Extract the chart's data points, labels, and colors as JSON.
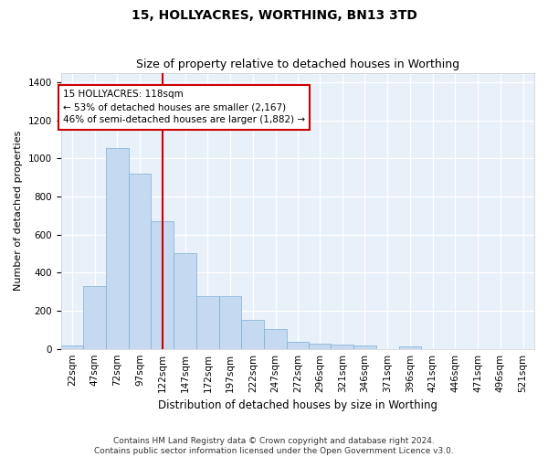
{
  "title": "15, HOLLYACRES, WORTHING, BN13 3TD",
  "subtitle": "Size of property relative to detached houses in Worthing",
  "xlabel": "Distribution of detached houses by size in Worthing",
  "ylabel": "Number of detached properties",
  "bar_color": "#c5d9f0",
  "bar_edge_color": "#7bafd4",
  "background_color": "#e8f0fa",
  "grid_color": "#ffffff",
  "annotation_box_color": "#cc0000",
  "annotation_text": "15 HOLLYACRES: 118sqm\n← 53% of detached houses are smaller (2,167)\n46% of semi-detached houses are larger (1,882) →",
  "vline_x": 122,
  "vline_color": "#cc0000",
  "categories": [
    "22sqm",
    "47sqm",
    "72sqm",
    "97sqm",
    "122sqm",
    "147sqm",
    "172sqm",
    "197sqm",
    "222sqm",
    "247sqm",
    "272sqm",
    "296sqm",
    "321sqm",
    "346sqm",
    "371sqm",
    "396sqm",
    "421sqm",
    "446sqm",
    "471sqm",
    "496sqm",
    "521sqm"
  ],
  "bin_edges": [
    9.5,
    34.5,
    59.5,
    84.5,
    109.5,
    134.5,
    159.5,
    184.5,
    209.5,
    234.5,
    259.5,
    283.5,
    308.5,
    333.5,
    358.5,
    383.5,
    408.5,
    433.5,
    458.5,
    483.5,
    508.5,
    533.5
  ],
  "values": [
    20,
    330,
    1055,
    920,
    670,
    500,
    275,
    275,
    150,
    103,
    37,
    25,
    22,
    17,
    0,
    12,
    0,
    0,
    0,
    0,
    0
  ],
  "ylim": [
    0,
    1450
  ],
  "yticks": [
    0,
    200,
    400,
    600,
    800,
    1000,
    1200,
    1400
  ],
  "footer_text": "Contains HM Land Registry data © Crown copyright and database right 2024.\nContains public sector information licensed under the Open Government Licence v3.0.",
  "title_fontsize": 10,
  "subtitle_fontsize": 9,
  "xlabel_fontsize": 8.5,
  "ylabel_fontsize": 8,
  "tick_fontsize": 7.5,
  "footer_fontsize": 6.5,
  "annot_fontsize": 7.5
}
